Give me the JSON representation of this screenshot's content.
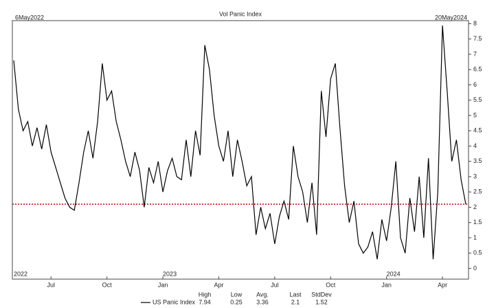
{
  "chart_data": {
    "type": "line",
    "title": "Vol Panic Index",
    "start_label": "6May2022",
    "end_label": "20May2024",
    "categories": [
      null,
      null,
      null,
      null,
      null,
      null,
      null,
      null,
      "Jul",
      null,
      null,
      null,
      null,
      null,
      null,
      null,
      null,
      null,
      null,
      null,
      "Oct",
      null,
      null,
      null,
      null,
      null,
      null,
      null,
      null,
      null,
      null,
      null,
      "Jan",
      null,
      null,
      null,
      null,
      null,
      null,
      null,
      null,
      null,
      null,
      null,
      "Apr",
      null,
      null,
      null,
      null,
      null,
      null,
      null,
      null,
      null,
      null,
      null,
      "Jul",
      null,
      null,
      null,
      null,
      null,
      null,
      null,
      null,
      null,
      null,
      null,
      "Oct",
      null,
      null,
      null,
      null,
      null,
      null,
      null,
      null,
      null,
      null,
      null,
      "Jan",
      null,
      null,
      null,
      null,
      null,
      null,
      null,
      null,
      null,
      null,
      null,
      "Apr",
      null,
      null,
      null,
      null,
      null
    ],
    "years": [
      "2022",
      null,
      null,
      null,
      null,
      null,
      null,
      null,
      null,
      null,
      null,
      null,
      null,
      null,
      null,
      null,
      null,
      null,
      null,
      null,
      null,
      null,
      null,
      null,
      null,
      null,
      null,
      null,
      null,
      null,
      null,
      null,
      "2023",
      null,
      null,
      null,
      null,
      null,
      null,
      null,
      null,
      null,
      null,
      null,
      null,
      null,
      null,
      null,
      null,
      null,
      null,
      null,
      null,
      null,
      null,
      null,
      null,
      null,
      null,
      null,
      null,
      null,
      null,
      null,
      null,
      null,
      null,
      null,
      null,
      null,
      null,
      null,
      null,
      null,
      null,
      null,
      null,
      null,
      null,
      null,
      "2024",
      null,
      null,
      null,
      null,
      null,
      null,
      null,
      null,
      null,
      null,
      null,
      null,
      null,
      null,
      null,
      null,
      null
    ],
    "series": [
      {
        "name": "US Panic Index",
        "color": "#000000",
        "values": [
          6.8,
          5.2,
          4.5,
          4.8,
          4.0,
          4.6,
          3.9,
          4.7,
          3.8,
          3.3,
          2.8,
          2.3,
          2.0,
          1.9,
          2.8,
          3.8,
          4.5,
          3.6,
          4.8,
          6.7,
          5.5,
          5.8,
          4.8,
          4.2,
          3.5,
          3.0,
          3.8,
          3.2,
          2.0,
          3.3,
          2.8,
          3.5,
          2.5,
          3.2,
          3.6,
          3.0,
          2.9,
          4.2,
          3.0,
          4.5,
          3.7,
          7.3,
          6.5,
          5.0,
          4.0,
          3.5,
          4.5,
          3.0,
          4.2,
          3.5,
          2.7,
          3.0,
          1.1,
          2.0,
          1.3,
          1.8,
          0.8,
          1.7,
          2.2,
          1.6,
          4.0,
          3.0,
          2.5,
          1.5,
          2.8,
          1.1,
          5.8,
          4.3,
          6.2,
          6.7,
          4.6,
          2.7,
          1.5,
          2.2,
          0.8,
          0.5,
          0.7,
          1.2,
          0.3,
          1.6,
          0.9,
          2.0,
          3.5,
          1.0,
          0.5,
          2.3,
          1.2,
          3.0,
          1.0,
          3.6,
          0.3,
          2.5,
          7.94,
          5.8,
          3.5,
          4.2,
          2.9,
          2.1
        ]
      }
    ],
    "reference_color": "#c00000",
    "ylim": [
      -0.35,
      8.1
    ],
    "yticks": [
      0,
      0.5,
      1,
      1.5,
      2,
      2.5,
      3,
      3.5,
      4,
      4.5,
      5,
      5.5,
      6,
      6.5,
      7,
      7.5,
      8
    ],
    "stats": [
      {
        "label": "High",
        "value": 7.94
      },
      {
        "label": "Low",
        "value": 0.25
      },
      {
        "label": "Avg.",
        "value": 3.36
      },
      {
        "label": "Last",
        "value": 2.1
      },
      {
        "label": "StdDev",
        "value": 1.52
      }
    ]
  }
}
